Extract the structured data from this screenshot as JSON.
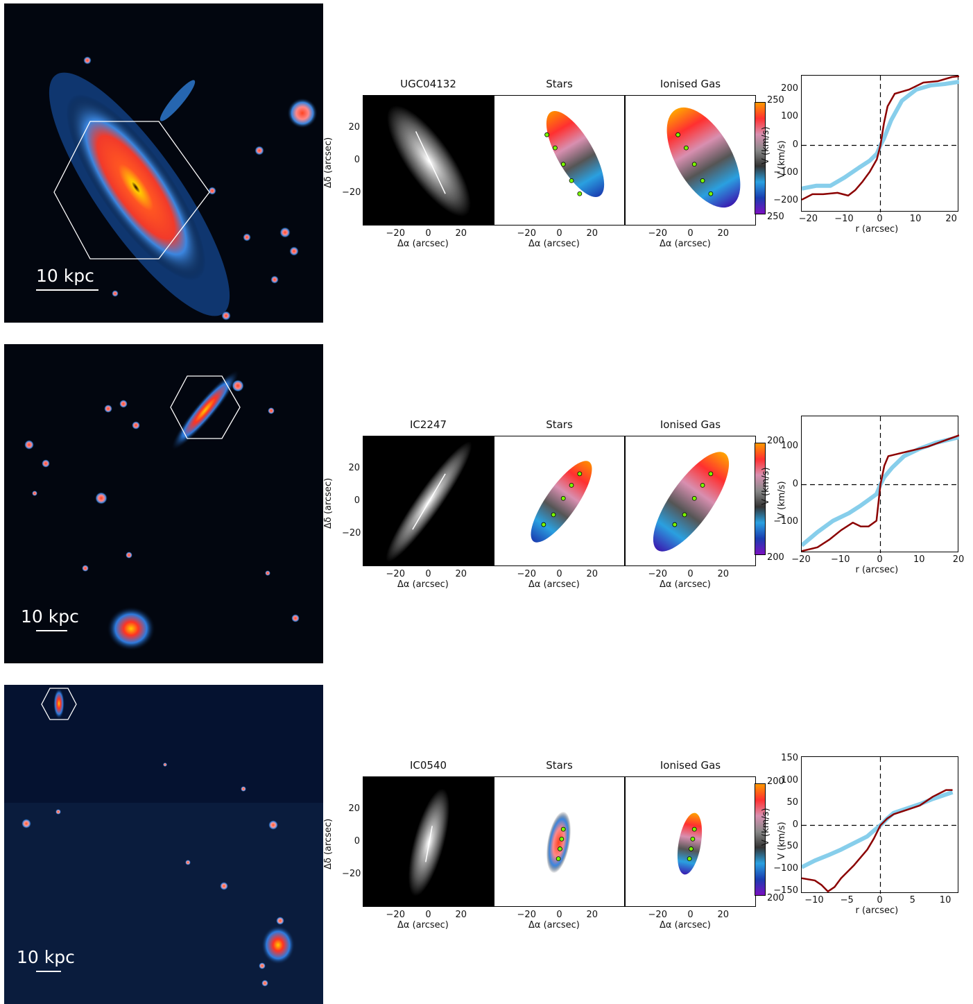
{
  "rows": [
    {
      "scalebar": "10 kpc",
      "titles": {
        "image": "UGC04132",
        "stars": "Stars",
        "gas": "Ionised Gas"
      },
      "cbar": {
        "top": "250",
        "bottom": "250"
      },
      "map_axes": {
        "xlabel": "Δα (arcsec)",
        "xlabel_spaced": "Δα   (arcsec)",
        "ylabel": "Δδ (arcsec)",
        "xticks": [
          "−20",
          "0",
          "20"
        ],
        "yticks": [
          "20",
          "0",
          "−20"
        ]
      },
      "chart_data": {
        "type": "line",
        "xlabel": "r (arcsec)",
        "ylabel": "V (km/s)",
        "xlim": [
          -22,
          22
        ],
        "ylim": [
          -240,
          250
        ],
        "xticks": [
          "−20",
          "−10",
          "0",
          "10",
          "20"
        ],
        "yticks": [
          "200",
          "100",
          "0",
          "−100",
          "−200"
        ],
        "ytick_vals": [
          200,
          100,
          0,
          -100,
          -200
        ],
        "xtick_vals": [
          -20,
          -10,
          0,
          10,
          20
        ],
        "series": [
          {
            "color": "#87ceeb",
            "x": [
              -22,
              -18,
              -14,
              -10,
              -6,
              -3,
              -1,
              0,
              1,
              3,
              6,
              10,
              14,
              18,
              22
            ],
            "values": [
              -155,
              -145,
              -145,
              -115,
              -80,
              -55,
              -30,
              0,
              25,
              90,
              160,
              200,
              215,
              220,
              228
            ]
          },
          {
            "color": "#8b0000",
            "x": [
              -22,
              -19,
              -16,
              -12,
              -9,
              -7,
              -5,
              -3,
              -1,
              0,
              1,
              2,
              4,
              8,
              12,
              16,
              20,
              22
            ],
            "values": [
              -195,
              -175,
              -175,
              -170,
              -180,
              -160,
              -130,
              -95,
              -50,
              0,
              80,
              140,
              185,
              200,
              225,
              230,
              245,
              248
            ]
          }
        ]
      }
    },
    {
      "scalebar": "10 kpc",
      "titles": {
        "image": "IC2247",
        "stars": "Stars",
        "gas": "Ionised Gas"
      },
      "cbar": {
        "top": "200",
        "bottom": "200"
      },
      "map_axes": {
        "xlabel": "Δα (arcsec)",
        "xlabel_spaced": "Δα   (arcsec)",
        "ylabel": "Δδ (arcsec)",
        "xticks": [
          "−20",
          "0",
          "20"
        ],
        "yticks": [
          "20",
          "0",
          "−20"
        ]
      },
      "chart_data": {
        "type": "line",
        "xlabel": "r (arcsec)",
        "ylabel": "V (km/s)",
        "xlim": [
          -20,
          20
        ],
        "ylim": [
          -180,
          180
        ],
        "xticks": [
          "−20",
          "−10",
          "0",
          "10",
          "20"
        ],
        "yticks": [
          "100",
          "0",
          "−100"
        ],
        "ytick_vals": [
          100,
          0,
          -100
        ],
        "xtick_vals": [
          -20,
          -10,
          0,
          10,
          20
        ],
        "series": [
          {
            "color": "#87ceeb",
            "x": [
              -20,
              -16,
              -12,
              -8,
              -5,
              -3,
              -1,
              0,
              1,
              3,
              6,
              10,
              14,
              18,
              20
            ],
            "values": [
              -160,
              -125,
              -95,
              -75,
              -55,
              -40,
              -25,
              0,
              20,
              45,
              75,
              95,
              110,
              120,
              125
            ]
          },
          {
            "color": "#8b0000",
            "x": [
              -20,
              -16,
              -13,
              -10,
              -7,
              -5,
              -3,
              -1,
              0,
              1,
              2,
              4,
              8,
              12,
              16,
              20
            ],
            "values": [
              -175,
              -165,
              -145,
              -120,
              -100,
              -110,
              -110,
              -95,
              0,
              50,
              75,
              80,
              90,
              100,
              115,
              130
            ]
          }
        ]
      }
    },
    {
      "scalebar": "10 kpc",
      "titles": {
        "image": "IC0540",
        "stars": "Stars",
        "gas": "Ionised Gas"
      },
      "cbar": {
        "top": "200",
        "bottom": "200"
      },
      "map_axes": {
        "xlabel": "Δα (arcsec)",
        "xlabel_spaced": "Δα   (arcsec)",
        "ylabel": "Δδ (arcsec)",
        "xticks": [
          "−20",
          "0",
          "20"
        ],
        "yticks": [
          "20",
          "0",
          "−20"
        ]
      },
      "chart_data": {
        "type": "line",
        "xlabel": "r (arcsec)",
        "ylabel": "V (km/s)",
        "xlim": [
          -12,
          12
        ],
        "ylim": [
          -155,
          155
        ],
        "xticks": [
          "−10",
          "−5",
          "0",
          "5",
          "10"
        ],
        "yticks": [
          "150",
          "100",
          "50",
          "0",
          "−50",
          "−100",
          "−150"
        ],
        "ytick_vals": [
          150,
          100,
          50,
          0,
          -50,
          -100,
          -150
        ],
        "xtick_vals": [
          -10,
          -5,
          0,
          5,
          10
        ],
        "series": [
          {
            "color": "#87ceeb",
            "x": [
              -12,
              -10,
              -8,
              -6,
              -4,
              -2,
              -1,
              0,
              1,
              2,
              4,
              6,
              8,
              10,
              11
            ],
            "values": [
              -95,
              -80,
              -68,
              -55,
              -40,
              -25,
              -12,
              0,
              15,
              28,
              38,
              48,
              60,
              70,
              75
            ]
          },
          {
            "color": "#8b0000",
            "x": [
              -12,
              -10,
              -9,
              -8,
              -7,
              -6,
              -4,
              -2,
              -1,
              0,
              1,
              2,
              4,
              6,
              8,
              10,
              11
            ],
            "values": [
              -120,
              -125,
              -135,
              -150,
              -140,
              -120,
              -90,
              -55,
              -30,
              0,
              15,
              25,
              35,
              45,
              65,
              80,
              80
            ]
          }
        ]
      }
    }
  ]
}
